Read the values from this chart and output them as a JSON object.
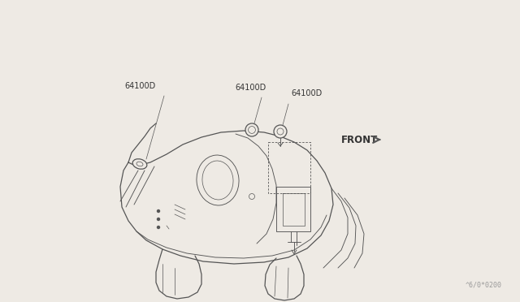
{
  "bg_color": "#eeeae4",
  "line_color": "#555555",
  "watermark": "^6/0*0200",
  "part_labels": [
    "64100D",
    "64100D",
    "64100D"
  ],
  "front_label": "FRONT",
  "label_color": "#333333",
  "label_fontsize": 7.0,
  "watermark_fontsize": 6.0,
  "front_fontsize": 8.5,
  "lw_main": 0.9,
  "lw_inner": 0.65,
  "lw_thin": 0.5
}
